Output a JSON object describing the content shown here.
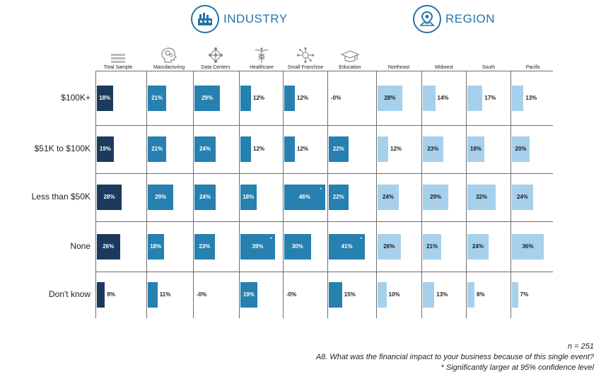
{
  "sections": {
    "industry": "INDUSTRY",
    "region": "REGION"
  },
  "footer": {
    "n": "n = 251",
    "question": "A8. What was the financial impact to your business because of this single event?",
    "note": "* Significantly larger at 95% confidence level"
  },
  "colors": {
    "total": "#1b3a5e",
    "industry": "#2680b0",
    "region": "#a6d0ec",
    "accent": "#2474a8"
  },
  "chart_data": {
    "type": "bar",
    "orientation": "horizontal",
    "categories": [
      "$100K+",
      "$51K to $100K",
      "Less than $50K",
      "None",
      "Don't know"
    ],
    "series": [
      {
        "name": "Total Sample",
        "group": "total",
        "icon": "equal-bars-icon",
        "values": [
          18,
          19,
          28,
          26,
          9
        ],
        "labels": [
          "18%",
          "19%",
          "28%",
          "26%",
          "9%"
        ]
      },
      {
        "name": "Manufacturing",
        "group": "industry",
        "icon": "gears-head-icon",
        "values": [
          21,
          21,
          29,
          18,
          11
        ],
        "labels": [
          "21%",
          "21%",
          "29%",
          "18%",
          "11%"
        ]
      },
      {
        "name": "Data Centers",
        "group": "industry",
        "icon": "network-icon",
        "values": [
          29,
          24,
          24,
          23,
          0
        ],
        "labels": [
          "29%",
          "24%",
          "24%",
          "23%",
          "-0%"
        ]
      },
      {
        "name": "Healthcare",
        "group": "industry",
        "icon": "caduceus-icon",
        "values": [
          12,
          12,
          18,
          39,
          19
        ],
        "labels": [
          "12%",
          "12%",
          "18%",
          "39%",
          "19%"
        ],
        "significant": [
          false,
          false,
          false,
          true,
          false
        ]
      },
      {
        "name": "Small Franchise",
        "group": "industry",
        "icon": "nodes-icon",
        "values": [
          12,
          12,
          46,
          30,
          0
        ],
        "labels": [
          "12%",
          "12%",
          "46%",
          "30%",
          "-0%"
        ],
        "significant": [
          false,
          false,
          true,
          false,
          false
        ]
      },
      {
        "name": "Education",
        "group": "industry",
        "icon": "graduation-cap-icon",
        "values": [
          0,
          22,
          22,
          41,
          15
        ],
        "labels": [
          "-0%",
          "22%",
          "22%",
          "41%",
          "15%"
        ],
        "significant": [
          false,
          false,
          false,
          true,
          false
        ]
      },
      {
        "name": "Northeast",
        "group": "region",
        "icon": "",
        "values": [
          28,
          12,
          24,
          26,
          10
        ],
        "labels": [
          "28%",
          "12%",
          "24%",
          "26%",
          "10%"
        ]
      },
      {
        "name": "Midwest",
        "group": "region",
        "icon": "",
        "values": [
          14,
          23,
          29,
          21,
          13
        ],
        "labels": [
          "14%",
          "23%",
          "29%",
          "21%",
          "13%"
        ]
      },
      {
        "name": "South",
        "group": "region",
        "icon": "",
        "values": [
          17,
          19,
          32,
          24,
          8
        ],
        "labels": [
          "17%",
          "19%",
          "32%",
          "24%",
          "8%"
        ]
      },
      {
        "name": "Pacific",
        "group": "region",
        "icon": "",
        "values": [
          13,
          20,
          24,
          36,
          7
        ],
        "labels": [
          "13%",
          "20%",
          "24%",
          "36%",
          "7%"
        ]
      }
    ],
    "significance_marker": "*"
  }
}
